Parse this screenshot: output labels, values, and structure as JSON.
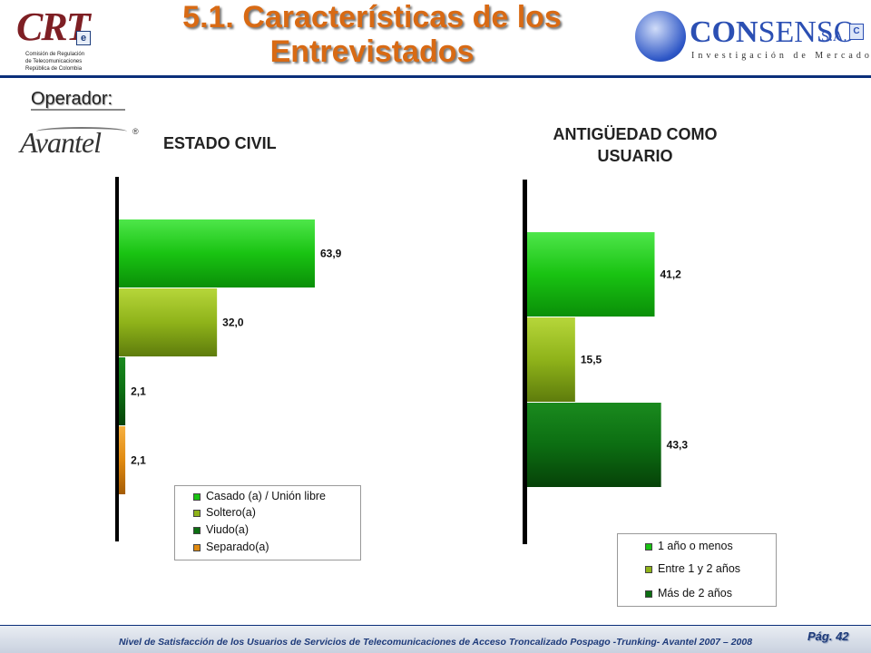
{
  "header": {
    "title_line1": "5.1. Características de los",
    "title_line2": "Entrevistados",
    "crt_logo": {
      "mark": "CRT",
      "box": "e",
      "lines": [
        "Comisión de Regulación",
        "de Telecomunicaciones",
        "República de Colombia"
      ]
    },
    "consenso_logo": {
      "name_bold": "CON",
      "name_rest": "SENSO",
      "suffix": "S.A.",
      "mini": "C",
      "tagline": "Investigación de Mercados"
    }
  },
  "operator": {
    "label": "Operador:",
    "brand": "Avantel",
    "brand_mark": "®"
  },
  "colors": {
    "title": "#d86a14",
    "bright_green": "#19c312",
    "olive_green": "#8fb31a",
    "dark_green": "#0c6e12",
    "orange": "#e08a10",
    "navy": "#0a2f7a"
  },
  "chart_data": [
    {
      "type": "bar",
      "orientation": "horizontal",
      "title": "ESTADO CIVIL",
      "categories": [
        "Casado (a) / Unión libre",
        "Soltero(a)",
        "Viudo(a)",
        "Separado(a)"
      ],
      "values": [
        63.9,
        32.0,
        2.1,
        2.1
      ],
      "value_labels": [
        "63,9",
        "32,0",
        "2,1",
        "2,1"
      ],
      "colors": [
        "#19c312",
        "#8fb31a",
        "#0c6e12",
        "#e08a10"
      ],
      "xlim": [
        0,
        100
      ],
      "grid": false,
      "legend_position": "bottom-right"
    },
    {
      "type": "bar",
      "orientation": "horizontal",
      "title": "ANTIGÜEDAD COMO USUARIO",
      "title_line1": "ANTIGÜEDAD COMO",
      "title_line2": "USUARIO",
      "categories": [
        "1 año o menos",
        "Entre 1 y 2 años",
        "Más de 2 años"
      ],
      "values": [
        41.2,
        15.5,
        43.3
      ],
      "value_labels": [
        "41,2",
        "15,5",
        "43,3"
      ],
      "colors": [
        "#19c312",
        "#8fb31a",
        "#0c6e12"
      ],
      "xlim": [
        0,
        100
      ],
      "grid": false,
      "legend_position": "bottom-right"
    }
  ],
  "footer": {
    "text": "Nivel de Satisfacción de los Usuarios de Servicios de Telecomunicaciones de Acceso Troncalizado Pospago -Trunking- Avantel 2007 – 2008",
    "page": "Pág. 42"
  }
}
